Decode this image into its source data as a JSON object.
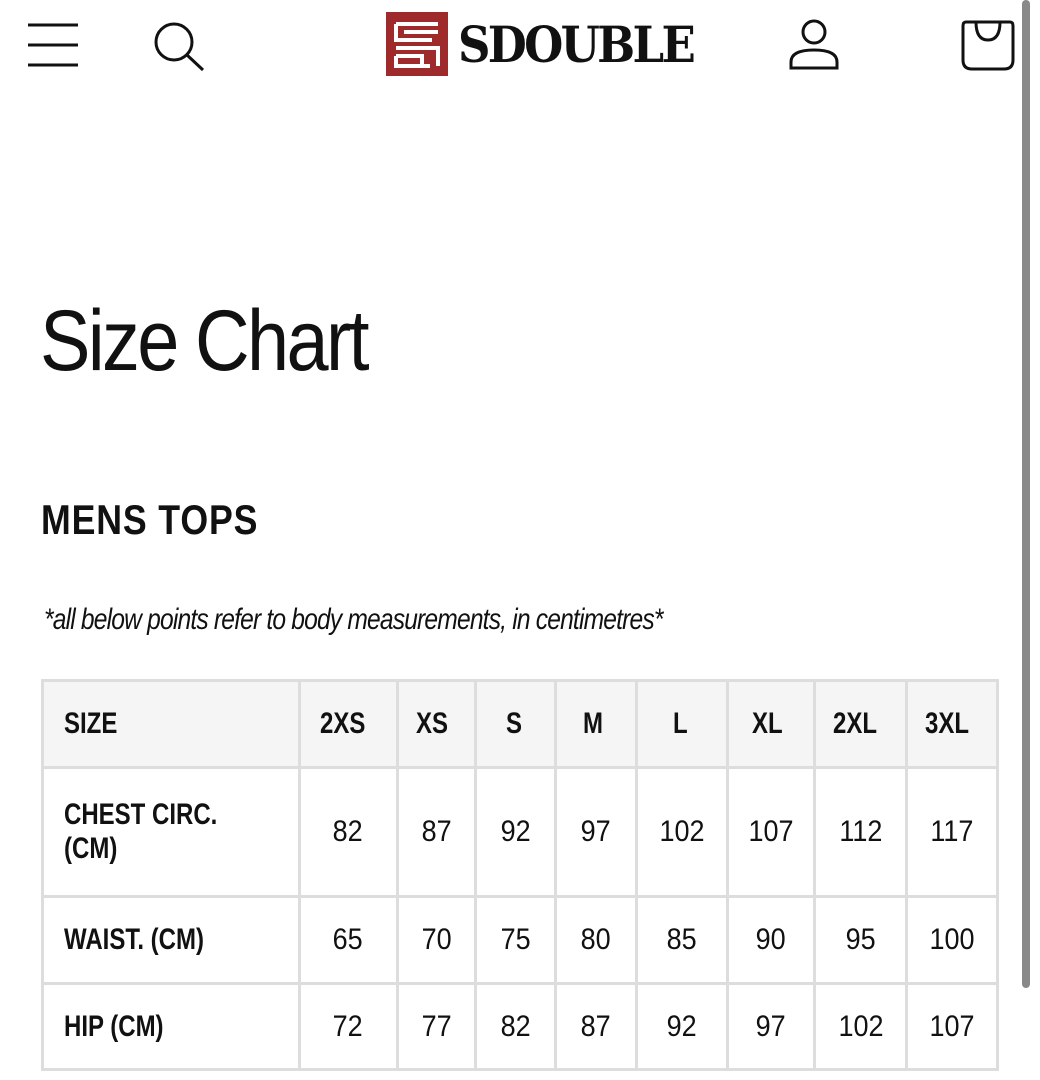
{
  "header": {
    "brand": "SDOUBLE",
    "icons": [
      "menu-icon",
      "search-icon",
      "user-icon",
      "cart-icon"
    ]
  },
  "page": {
    "title": "Size Chart",
    "section": "MENS TOPS",
    "note": "*all below points refer to body measurements, in centimetres*"
  },
  "colors": {
    "brand_red": "#9e2a2b",
    "header_bg": "#f5f5f5",
    "border": "#dddddd"
  },
  "table": {
    "headers": [
      "SIZE",
      "2XS",
      "XS",
      "S",
      "M",
      "L",
      "XL",
      "2XL",
      "3XL"
    ],
    "rows": [
      {
        "label": "CHEST CIRC. (CM)",
        "values": [
          "82",
          "87",
          "92",
          "97",
          "102",
          "107",
          "112",
          "117"
        ]
      },
      {
        "label": "WAIST. (CM)",
        "values": [
          "65",
          "70",
          "75",
          "80",
          "85",
          "90",
          "95",
          "100"
        ]
      },
      {
        "label": "HIP (CM)",
        "values": [
          "72",
          "77",
          "82",
          "87",
          "92",
          "97",
          "102",
          "107"
        ]
      }
    ]
  }
}
